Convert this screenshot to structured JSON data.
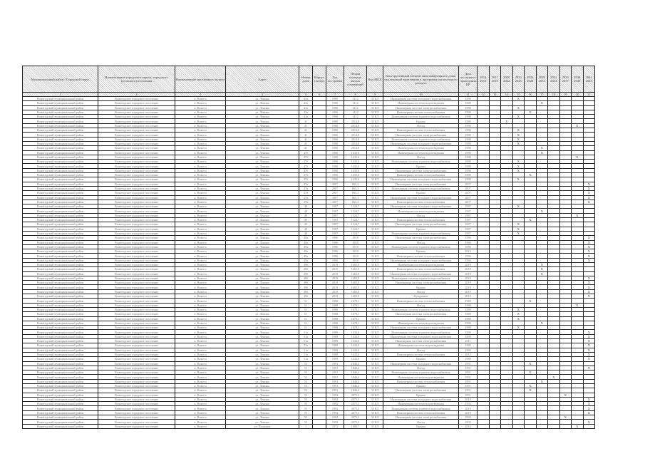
{
  "headers": [
    "Муниципальный район / Городской округ",
    "Наименование городского округа, городского (сельского) поселения",
    "Наименование населенного пункта",
    "Адрес",
    "Номер дома",
    "Корпус (литер)",
    "Год постройки",
    "Общая площадь жилых помещений",
    "Код МКД",
    "Конструктивный элемент многоквартирного дома, подлежащий включению в программу капитального ремонта",
    "Дата последнего проведения КР",
    "2014 2016",
    "2017 2019",
    "2020 2022",
    "2023 2025",
    "2026 2028",
    "2029 2031",
    "2032 2034",
    "2035 2037",
    "2038 2040",
    "2041 2043"
  ],
  "column_numbers": [
    "1",
    "2",
    "3",
    "4",
    "5",
    "6",
    "7",
    "8",
    "9",
    "10",
    "11",
    "12",
    "13",
    "14",
    "15",
    "16",
    "17",
    "18",
    "19",
    "20",
    "21"
  ],
  "periods": [
    "2014-2016",
    "2017-2019",
    "2020-2022",
    "2023-2025",
    "2026-2028",
    "2029-2031",
    "2032-2034",
    "2035-2037",
    "2038-2040",
    "2041-2043"
  ],
  "mark": "X",
  "defaults": {
    "district": "Вожегодский муниципальный район",
    "settlement": "Вожегодское городское поселение",
    "locality": "п. Вожега",
    "street": "ул. Ленина",
    "korpus": "",
    "code": "35 КЛ"
  },
  "rows": [
    {
      "house": "43а",
      "built": "1980",
      "area": "1412",
      "element": "Инженерная система холодного водоснабжения",
      "last": "1980",
      "period": "2023-2025"
    },
    {
      "house": "43а",
      "built": "1980",
      "area": "1412",
      "element": "Инженерная система водоотведения",
      "last": "1980",
      "period": "2029-2031"
    },
    {
      "house": "43а",
      "built": "1980",
      "area": "1412",
      "element": "Инженерная система электроснабжения",
      "last": "1980",
      "period": "2023-2025"
    },
    {
      "house": "43а",
      "built": "1980",
      "area": "1412",
      "element": "Инженерная система теплоснабжения",
      "last": "1980",
      "period": "2026-2028"
    },
    {
      "house": "43а",
      "built": "1980",
      "area": "1412",
      "element": "Инженерная система горячего водоснабжения",
      "last": "1980",
      "period": "2023-2025"
    },
    {
      "house": "41",
      "built": "1980",
      "area": "2014,8",
      "element": "Крыша",
      "last": "1980",
      "period": "2020-2022"
    },
    {
      "house": "41",
      "built": "1980",
      "area": "2014,8",
      "element": "Фасад",
      "last": "1986",
      "period": "2038-2040"
    },
    {
      "house": "41",
      "built": "1980",
      "area": "2014,8",
      "element": "Инженерная система теплоснабжения",
      "last": "1980",
      "period": "2023-2025"
    },
    {
      "house": "41",
      "built": "1980",
      "area": "2014,8",
      "element": "Инженерная система электроснабжения",
      "last": "1980",
      "period": "2023-2025"
    },
    {
      "house": "41",
      "built": "1980",
      "area": "2014,8",
      "element": "Инженерная система горячего водоснабжения",
      "last": "1980",
      "period": "2023-2025"
    },
    {
      "house": "41",
      "built": "1980",
      "area": "2014,8",
      "element": "Инженерная система холодного водоснабжения",
      "last": "1980",
      "period": "2023-2025"
    },
    {
      "house": "41",
      "built": "1980",
      "area": "2014,8",
      "element": "Инженерная система водоотведения",
      "last": "1980",
      "period": "2029-2031"
    },
    {
      "house": "47б",
      "built": "1980",
      "area": "1435,6",
      "element": "Инженерная система водоотведения",
      "last": "1980",
      "period": "2029-2031"
    },
    {
      "house": "47б",
      "built": "1980",
      "area": "1435,6",
      "element": "Фасад",
      "last": "1980",
      "period": "2038-2040"
    },
    {
      "house": "47б",
      "built": "1980",
      "area": "1435,6",
      "element": "Инженерная система горячего водоснабжения",
      "last": "1980",
      "period": "2023-2025"
    },
    {
      "house": "47б",
      "built": "1980",
      "area": "1435,6",
      "element": "Крыша",
      "last": "1980",
      "period": "2023-2025"
    },
    {
      "house": "47б",
      "built": "1980",
      "area": "1435,6",
      "element": "Инженерная система электроснабжения",
      "last": "1980",
      "period": "2023-2025"
    },
    {
      "house": "47б",
      "built": "1980",
      "area": "1435,6",
      "element": "Инженерная система теплоснабжения",
      "last": "1980",
      "period": "2026-2028"
    },
    {
      "house": "47б",
      "built": "1980",
      "area": "1435,6",
      "element": "Инженерная система холодного водоснабжения",
      "last": "1980",
      "period": "2023-2025"
    },
    {
      "house": "47в",
      "built": "2007",
      "area": "865,3",
      "element": "Инженерная система электроснабжения",
      "last": "2007",
      "period": "2041-2043"
    },
    {
      "house": "47в",
      "built": "2007",
      "area": "865,3",
      "element": "Инженерная система горячего водоснабжения",
      "last": "2007",
      "period": "2041-2043"
    },
    {
      "house": "47в",
      "built": "2007",
      "area": "865,3",
      "element": "Крыша",
      "last": "2007",
      "period": "2041-2043"
    },
    {
      "house": "47в",
      "built": "2007",
      "area": "865,3",
      "element": "Инженерная система холодного водоснабжения",
      "last": "2007",
      "period": "2041-2043"
    },
    {
      "house": "47в",
      "built": "2007",
      "area": "865,3",
      "element": "Инженерная система теплоснабжения",
      "last": "2007",
      "period": "2041-2043"
    },
    {
      "house": "49",
      "built": "1987",
      "area": "1324,7",
      "element": "Инженерная система холодного водоснабжения",
      "last": "1987",
      "period": "2023-2025"
    },
    {
      "house": "49",
      "built": "1987",
      "area": "1324,7",
      "element": "Инженерная система водоотведения",
      "last": "1987",
      "period": "2029-2031"
    },
    {
      "house": "49",
      "built": "1987",
      "area": "1324,7",
      "element": "Фасад",
      "last": "1987",
      "period": "2038-2040"
    },
    {
      "house": "49",
      "built": "1987",
      "area": "1324,7",
      "element": "Инженерная система теплоснабжения",
      "last": "1987",
      "period": "2026-2028"
    },
    {
      "house": "49",
      "built": "1987",
      "area": "1324,7",
      "element": "Инженерная система электроснабжения",
      "last": "1987",
      "period": "2023-2025"
    },
    {
      "house": "49",
      "built": "1987",
      "area": "1324,7",
      "element": "Крыша",
      "last": "1987",
      "period": "2023-2025"
    },
    {
      "house": "49",
      "built": "1987",
      "area": "1324,7",
      "element": "Инженерная система горячего водоснабжения",
      "last": "1987",
      "period": "2023-2025"
    },
    {
      "house": "49а",
      "built": "1986",
      "area": "1818",
      "element": "Инженерная система электроснабжения",
      "last": "1986",
      "period": "2041-2043"
    },
    {
      "house": "49а",
      "built": "1986",
      "area": "1818",
      "element": "Фасад",
      "last": "1986",
      "period": "2041-2043"
    },
    {
      "house": "49а",
      "built": "1986",
      "area": "1818",
      "element": "Инженерная система горячего водоснабжения",
      "last": "1986",
      "period": "2041-2043"
    },
    {
      "house": "49а",
      "built": "1986",
      "area": "1818",
      "element": "Крыша",
      "last": "2013",
      "period": "2041-2043"
    },
    {
      "house": "49а",
      "built": "1986",
      "area": "1818",
      "element": "Инженерная система теплоснабжения",
      "last": "1986",
      "period": "2041-2043"
    },
    {
      "house": "49а",
      "built": "1986",
      "area": "1818",
      "element": "Инженерная система холодного водоснабжения",
      "last": "1986",
      "period": "2041-2043"
    },
    {
      "house": "49б",
      "built": "2019",
      "area": "1465,9",
      "element": "Инженерная система водоотведения",
      "last": "2019",
      "period": "2029-2031"
    },
    {
      "house": "49б",
      "built": "2019",
      "area": "1465,9",
      "element": "Инженерная система теплоснабжения",
      "last": "2019",
      "period": "2029-2031"
    },
    {
      "house": "49б",
      "built": "2019",
      "area": "1465,9",
      "element": "Инженерная система холодного водоснабжения",
      "last": "2019",
      "period": "2029-2031"
    },
    {
      "house": "49б",
      "built": "2019",
      "area": "1465,9",
      "element": "Инженерная система горячего водоснабжения",
      "last": "2019",
      "period": "2041-2043"
    },
    {
      "house": "49б",
      "built": "2019",
      "area": "1465,9",
      "element": "Инженерная система электроснабжения",
      "last": "2019",
      "period": "2041-2043"
    },
    {
      "house": "49б",
      "built": "2019",
      "area": "1465,9",
      "element": "Крыша",
      "last": "2019",
      "period": "2041-2043"
    },
    {
      "house": "49б",
      "built": "2019",
      "area": "1465,9",
      "element": "Фасад",
      "last": "2019",
      "period": "2041-2043"
    },
    {
      "house": "49б",
      "built": "2019",
      "area": "1465,9",
      "element": "Фундамент",
      "last": "2019",
      "period": "2041-2043"
    },
    {
      "house": "51",
      "built": "1988",
      "area": "1678,1",
      "element": "Инженерная система теплоснабжения",
      "last": "1988",
      "period": "2026-2028"
    },
    {
      "house": "51",
      "built": "1988",
      "area": "1678,1",
      "element": "Фасад",
      "last": "1988",
      "period": "2038-2040"
    },
    {
      "house": "51",
      "built": "1988",
      "area": "1678,1",
      "element": "Инженерная система горячего водоснабжения",
      "last": "1988",
      "period": "2023-2025"
    },
    {
      "house": "51",
      "built": "1988",
      "area": "1678,1",
      "element": "Инженерная система электроснабжения",
      "last": "1988",
      "period": "2023-2025"
    },
    {
      "house": "51",
      "built": "1988",
      "area": "1678,1",
      "element": "Крыша",
      "last": "1988",
      "period": "2023-2025"
    },
    {
      "house": "51",
      "built": "1988",
      "area": "1678,1",
      "element": "Инженерная система водоотведения",
      "last": "1988",
      "period": "2029-2031"
    },
    {
      "house": "51",
      "built": "1988",
      "area": "1678,1",
      "element": "Инженерная система холодного водоснабжения",
      "last": "1988",
      "period": "2023-2025"
    },
    {
      "house": "51а",
      "built": "1989",
      "area": "1432,6",
      "element": "Инженерная система горячего водоснабжения",
      "last": "1989",
      "period": "2041-2043"
    },
    {
      "house": "51а",
      "built": "1989",
      "area": "1432,6",
      "element": "Инженерная система холодного водоснабжения",
      "last": "1989",
      "period": "2041-2043"
    },
    {
      "house": "51а",
      "built": "1989",
      "area": "1432,6",
      "element": "Инженерная система электроснабжения",
      "last": "2011",
      "period": "2041-2043"
    },
    {
      "house": "51а",
      "built": "1989",
      "area": "1432,6",
      "element": "Инженерная система водоотведения",
      "last": "1989",
      "period": "2041-2043"
    },
    {
      "house": "51а",
      "built": "1989",
      "area": "1432,6",
      "element": "Фасад",
      "last": "1989",
      "period": "2041-2043"
    },
    {
      "house": "51а",
      "built": "1989",
      "area": "1432,6",
      "element": "Инженерная система теплоснабжения",
      "last": "2012",
      "period": "2041-2043"
    },
    {
      "house": "51а",
      "built": "1989",
      "area": "1432,6",
      "element": "Крыша",
      "last": "1989",
      "period": "2041-2043"
    },
    {
      "house": "53",
      "built": "1991",
      "area": "1846,4",
      "element": "Инженерная система холодного водоснабжения",
      "last": "1991",
      "period": "2026-2028"
    },
    {
      "house": "53",
      "built": "1991",
      "area": "1846,4",
      "element": "Фасад",
      "last": "1991",
      "period": "2041-2043"
    },
    {
      "house": "53",
      "built": "1991",
      "area": "1846,4",
      "element": "Инженерная система горячего водоснабжения",
      "last": "1991",
      "period": "2026-2028"
    },
    {
      "house": "53",
      "built": "1991",
      "area": "1846,4",
      "element": "Инженерная система водоотведения",
      "last": "1991",
      "period": "2032-2034"
    },
    {
      "house": "53",
      "built": "1991",
      "area": "1846,4",
      "element": "Инженерная система теплоснабжения",
      "last": "1991",
      "period": "2029-2031"
    },
    {
      "house": "53",
      "built": "1991",
      "area": "1846,4",
      "element": "Крыша",
      "last": "1991",
      "period": "2026-2028"
    },
    {
      "house": "53",
      "built": "1991",
      "area": "1846,4",
      "element": "Инженерная система электроснабжения",
      "last": "1991",
      "period": "2026-2028"
    },
    {
      "house": "55",
      "built": "1992",
      "area": "2075,3",
      "element": "Крыша",
      "last": "1991",
      "period": "2035-2037"
    },
    {
      "house": "55",
      "built": "1992",
      "area": "2075,3",
      "element": "Инженерная система холодного водоснабжения",
      "last": "2010",
      "period": "2041-2043"
    },
    {
      "house": "55",
      "built": "1992",
      "area": "2075,3",
      "element": "Инженерная система водоотведения",
      "last": "1992",
      "period": "2041-2043"
    },
    {
      "house": "55",
      "built": "1992",
      "area": "2075,3",
      "element": "Инженерная система горячего водоснабжения",
      "last": "2010",
      "period": "2041-2043"
    },
    {
      "house": "55",
      "built": "1992",
      "area": "2075,3",
      "element": "Инженерная система теплоснабжения",
      "last": "2010",
      "period": "2041-2043"
    },
    {
      "house": "55",
      "built": "1992",
      "area": "2075,3",
      "element": "Инженерная система электроснабжения",
      "last": "1992",
      "period": "2035-2037"
    },
    {
      "house": "55",
      "built": "1992",
      "area": "2075,3",
      "element": "Фасад",
      "last": "1992",
      "period": "2041-2043"
    },
    {
      "house": "1",
      "built": "1872",
      "area": "1008,7",
      "element": "Крыша",
      "last": "2016",
      "period": "2038-2040",
      "street": "ул. Пушкина"
    }
  ]
}
